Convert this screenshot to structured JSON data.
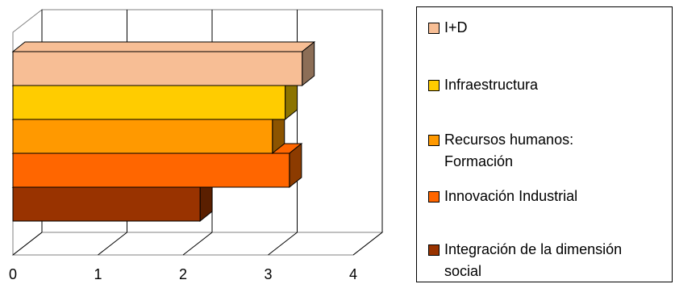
{
  "chart_data": {
    "type": "bar",
    "orientation": "horizontal",
    "three_d": true,
    "stacked_without_gap": true,
    "title": "",
    "xlabel": "",
    "ylabel": "",
    "xlim": [
      0,
      4
    ],
    "x_ticks": [
      "0",
      "1",
      "2",
      "3",
      "4"
    ],
    "grid": "vertical",
    "legend_position": "right",
    "series": [
      {
        "name": "I+D",
        "value": 3.4,
        "color": "#F7BE95",
        "side": "#8C6E57"
      },
      {
        "name": "Infraestructura",
        "value": 3.2,
        "color": "#FFCC00",
        "side": "#8C7400"
      },
      {
        "name": "Recursos humanos: Formación",
        "value": 3.05,
        "color": "#FF9900",
        "side": "#8C5400"
      },
      {
        "name": "Innovación Industrial",
        "value": 3.25,
        "color": "#FF6600",
        "side": "#8C3B00"
      },
      {
        "name": "Integración de la dimensión social",
        "value": 2.2,
        "color": "#993300",
        "side": "#5A1F00"
      }
    ]
  }
}
